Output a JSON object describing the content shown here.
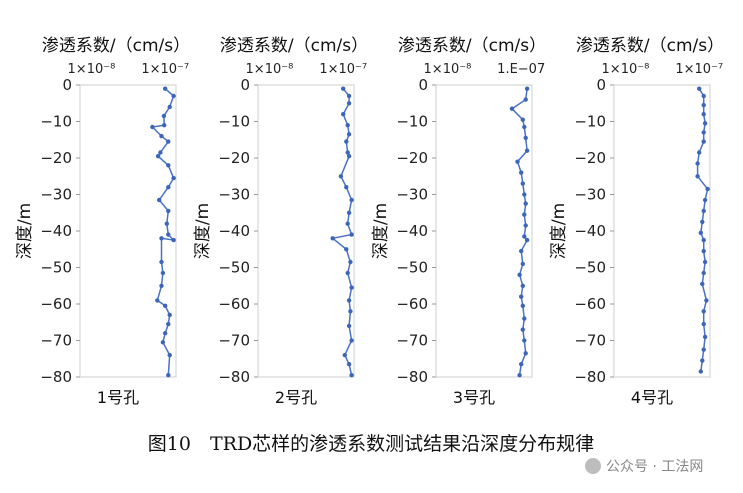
{
  "figure": {
    "caption": "图10　TRD芯样的渗透系数测试结果沿深度分布规律",
    "watermark": "公众号 · 工法网"
  },
  "chart_data": [
    {
      "type": "line",
      "panel_label": "1号孔",
      "top_axis_title": "渗透系数/（cm/s）",
      "top_tick_labels": [
        "1×10⁻⁸",
        "1×10⁻⁷"
      ],
      "y_axis_title": "深度/m",
      "y_tick_labels": [
        "0",
        "−10",
        "−20",
        "−30",
        "−40",
        "−50",
        "−60",
        "−70",
        "−80"
      ],
      "ylim": [
        -80,
        0
      ],
      "x_scale": "log",
      "points": [
        {
          "k": 1e-07,
          "depth": -1
        },
        {
          "k": 1.3e-07,
          "depth": -3
        },
        {
          "k": 1.15e-07,
          "depth": -6
        },
        {
          "k": 9.6e-08,
          "depth": -8.5
        },
        {
          "k": 9.7e-08,
          "depth": -11
        },
        {
          "k": 6.7e-08,
          "depth": -11.5
        },
        {
          "k": 8.9e-08,
          "depth": -14
        },
        {
          "k": 1.1e-07,
          "depth": -15.5
        },
        {
          "k": 8.6e-08,
          "depth": -18.5
        },
        {
          "k": 8e-08,
          "depth": -19.5
        },
        {
          "k": 1.1e-07,
          "depth": -22
        },
        {
          "k": 1.3e-07,
          "depth": -25.5
        },
        {
          "k": 1.1e-07,
          "depth": -28
        },
        {
          "k": 8.3e-08,
          "depth": -31.5
        },
        {
          "k": 1.1e-07,
          "depth": -34.5
        },
        {
          "k": 1.05e-07,
          "depth": -38
        },
        {
          "k": 1.1e-07,
          "depth": -41
        },
        {
          "k": 1.3e-07,
          "depth": -42.5
        },
        {
          "k": 8.9e-08,
          "depth": -42
        },
        {
          "k": 8.9e-08,
          "depth": -48.5
        },
        {
          "k": 9.3e-08,
          "depth": -51.5
        },
        {
          "k": 8.9e-08,
          "depth": -55
        },
        {
          "k": 7.8e-08,
          "depth": -59
        },
        {
          "k": 1e-07,
          "depth": -60.5
        },
        {
          "k": 1.15e-07,
          "depth": -63
        },
        {
          "k": 1.1e-07,
          "depth": -65.5
        },
        {
          "k": 1e-07,
          "depth": -68
        },
        {
          "k": 9.3e-08,
          "depth": -70.5
        },
        {
          "k": 1.15e-07,
          "depth": -74
        },
        {
          "k": 1.1e-07,
          "depth": -79.5
        }
      ]
    },
    {
      "type": "line",
      "panel_label": "2号孔",
      "top_axis_title": "渗透系数/（cm/s）",
      "top_tick_labels": [
        "1×10⁻⁸",
        "1×10⁻⁷"
      ],
      "y_axis_title": "深度/m",
      "y_tick_labels": [
        "0",
        "−10",
        "−20",
        "−30",
        "−40",
        "−50",
        "−60",
        "−70",
        "−80"
      ],
      "ylim": [
        -80,
        0
      ],
      "x_scale": "log",
      "points": [
        {
          "k": 1e-07,
          "depth": -1
        },
        {
          "k": 1.2e-07,
          "depth": -3
        },
        {
          "k": 1.2e-07,
          "depth": -5
        },
        {
          "k": 1e-07,
          "depth": -8
        },
        {
          "k": 1.15e-07,
          "depth": -11
        },
        {
          "k": 1.2e-07,
          "depth": -13.5
        },
        {
          "k": 1.1e-07,
          "depth": -15.5
        },
        {
          "k": 1.15e-07,
          "depth": -18.5
        },
        {
          "k": 1.2e-07,
          "depth": -19.5
        },
        {
          "k": 9.3e-08,
          "depth": -25
        },
        {
          "k": 1.1e-07,
          "depth": -28
        },
        {
          "k": 1.3e-07,
          "depth": -31.5
        },
        {
          "k": 1.2e-07,
          "depth": -35
        },
        {
          "k": 1.15e-07,
          "depth": -38
        },
        {
          "k": 1.3e-07,
          "depth": -41
        },
        {
          "k": 7.2e-08,
          "depth": -42
        },
        {
          "k": 1.1e-07,
          "depth": -45
        },
        {
          "k": 1.25e-07,
          "depth": -48.5
        },
        {
          "k": 1.15e-07,
          "depth": -51.5
        },
        {
          "k": 1.3e-07,
          "depth": -55.5
        },
        {
          "k": 1.2e-07,
          "depth": -59
        },
        {
          "k": 1.25e-07,
          "depth": -62
        },
        {
          "k": 1.2e-07,
          "depth": -66
        },
        {
          "k": 1.3e-07,
          "depth": -70
        },
        {
          "k": 1.05e-07,
          "depth": -74
        },
        {
          "k": 1.2e-07,
          "depth": -76.5
        },
        {
          "k": 1.3e-07,
          "depth": -79.5
        }
      ]
    },
    {
      "type": "line",
      "panel_label": "3号孔",
      "top_axis_title": "渗透系数/（cm/s）",
      "top_tick_labels": [
        "1×10⁻⁸",
        "1.E−07"
      ],
      "y_axis_title": "深度/m",
      "y_tick_labels": [
        "0",
        "−10",
        "−20",
        "−30",
        "−40",
        "−50",
        "−60",
        "−70",
        "−80"
      ],
      "ylim": [
        -80,
        0
      ],
      "x_scale": "log",
      "points": [
        {
          "k": 1.2e-07,
          "depth": -1
        },
        {
          "k": 1.15e-07,
          "depth": -4
        },
        {
          "k": 7.5e-08,
          "depth": -6.5
        },
        {
          "k": 1.05e-07,
          "depth": -9.5
        },
        {
          "k": 1.1e-07,
          "depth": -11.5
        },
        {
          "k": 1.15e-07,
          "depth": -14.5
        },
        {
          "k": 1.2e-07,
          "depth": -18
        },
        {
          "k": 8.9e-08,
          "depth": -21
        },
        {
          "k": 1e-07,
          "depth": -24
        },
        {
          "k": 1.05e-07,
          "depth": -27
        },
        {
          "k": 1.1e-07,
          "depth": -30
        },
        {
          "k": 1.15e-07,
          "depth": -32.5
        },
        {
          "k": 1.1e-07,
          "depth": -35.5
        },
        {
          "k": 1.15e-07,
          "depth": -38.5
        },
        {
          "k": 1.1e-07,
          "depth": -41.5
        },
        {
          "k": 1.2e-07,
          "depth": -42.5
        },
        {
          "k": 1e-07,
          "depth": -45.5
        },
        {
          "k": 1.05e-07,
          "depth": -49
        },
        {
          "k": 9.5e-08,
          "depth": -52
        },
        {
          "k": 1.05e-07,
          "depth": -55
        },
        {
          "k": 1e-07,
          "depth": -58
        },
        {
          "k": 1.05e-07,
          "depth": -60.5
        },
        {
          "k": 1.1e-07,
          "depth": -64
        },
        {
          "k": 1.05e-07,
          "depth": -67
        },
        {
          "k": 1.1e-07,
          "depth": -70
        },
        {
          "k": 1.15e-07,
          "depth": -73.5
        },
        {
          "k": 1e-07,
          "depth": -76.5
        },
        {
          "k": 9.5e-08,
          "depth": -79.5
        }
      ]
    },
    {
      "type": "line",
      "panel_label": "4号孔",
      "top_axis_title": "渗透系数/（cm/s）",
      "top_tick_labels": [
        "1×10⁻⁸",
        "1×10⁻⁷"
      ],
      "y_axis_title": "深度/m",
      "y_tick_labels": [
        "0",
        "−10",
        "−20",
        "−30",
        "−40",
        "−50",
        "−60",
        "−70",
        "−80"
      ],
      "ylim": [
        -80,
        0
      ],
      "x_scale": "log",
      "points": [
        {
          "k": 1e-07,
          "depth": -1
        },
        {
          "k": 1.15e-07,
          "depth": -3
        },
        {
          "k": 1.15e-07,
          "depth": -5.5
        },
        {
          "k": 1.15e-07,
          "depth": -8
        },
        {
          "k": 1.2e-07,
          "depth": -10.5
        },
        {
          "k": 1.15e-07,
          "depth": -13
        },
        {
          "k": 1.15e-07,
          "depth": -15.5
        },
        {
          "k": 1e-07,
          "depth": -18.5
        },
        {
          "k": 9.5e-08,
          "depth": -21.5
        },
        {
          "k": 9.5e-08,
          "depth": -25
        },
        {
          "k": 1.3e-07,
          "depth": -28.5
        },
        {
          "k": 1.2e-07,
          "depth": -31.5
        },
        {
          "k": 1.15e-07,
          "depth": -34.5
        },
        {
          "k": 1.1e-07,
          "depth": -37.5
        },
        {
          "k": 1.05e-07,
          "depth": -40.5
        },
        {
          "k": 1.15e-07,
          "depth": -42.5
        },
        {
          "k": 1.15e-07,
          "depth": -45.5
        },
        {
          "k": 1.2e-07,
          "depth": -48.5
        },
        {
          "k": 1.15e-07,
          "depth": -51.5
        },
        {
          "k": 1.1e-07,
          "depth": -54.5
        },
        {
          "k": 1.25e-07,
          "depth": -59
        },
        {
          "k": 1.15e-07,
          "depth": -62
        },
        {
          "k": 1.15e-07,
          "depth": -65.5
        },
        {
          "k": 1.2e-07,
          "depth": -69
        },
        {
          "k": 1.15e-07,
          "depth": -72.5
        },
        {
          "k": 1.1e-07,
          "depth": -75.5
        },
        {
          "k": 1.05e-07,
          "depth": -78.5
        }
      ]
    }
  ]
}
